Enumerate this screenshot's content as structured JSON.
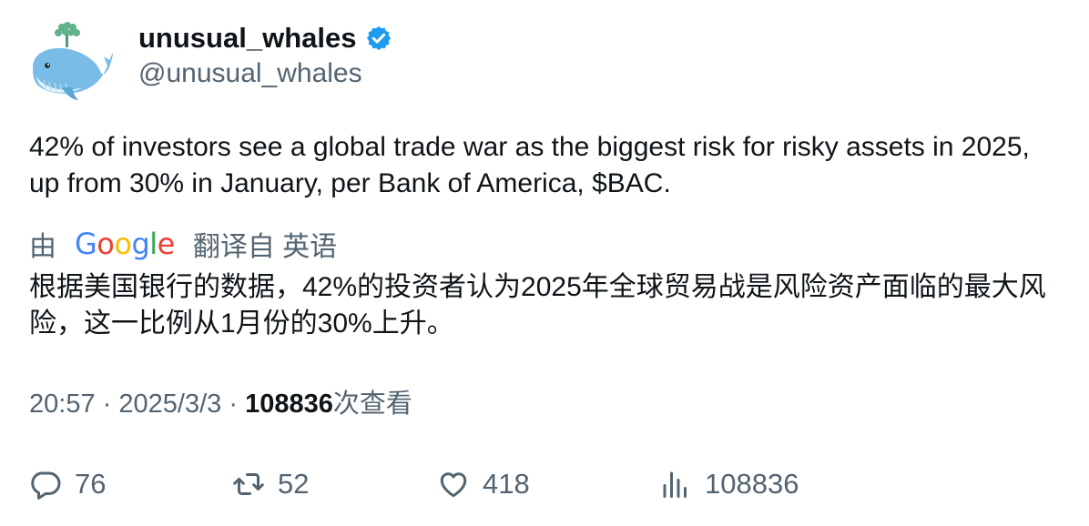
{
  "author": {
    "display_name": "unusual_whales",
    "handle": "@unusual_whales",
    "verified": true,
    "avatar_icon": "whale-logo-icon",
    "verified_icon": "verified-badge-icon",
    "verified_color": "#1d9bf0"
  },
  "tweet": {
    "text": "42% of investors see a global trade war as the biggest risk for risky assets in 2025, up from 30% in January, per Bank of America, $BAC."
  },
  "translation": {
    "prefix": "由",
    "provider_logo_letters": [
      "G",
      "o",
      "o",
      "g",
      "l",
      "e"
    ],
    "suffix": "翻译自 英语",
    "text": "根据美国银行的数据，42%的投资者认为2025年全球贸易战是风险资产面临的最大风险，这一比例从1月份的30%上升。"
  },
  "meta": {
    "time": "20:57",
    "separator": "·",
    "date": "2025/3/3",
    "views_count": "108836",
    "views_label": "次查看"
  },
  "actions": {
    "reply": {
      "icon": "reply-icon",
      "count": "76"
    },
    "retweet": {
      "icon": "retweet-icon",
      "count": "52"
    },
    "like": {
      "icon": "heart-icon",
      "count": "418"
    },
    "views": {
      "icon": "views-chart-icon",
      "count": "108836"
    }
  },
  "colors": {
    "text_primary": "#0f1419",
    "text_secondary": "#536471",
    "google_blue": "#4285f4",
    "google_red": "#ea4335",
    "google_yellow": "#fbbc05",
    "google_green": "#34a853"
  }
}
